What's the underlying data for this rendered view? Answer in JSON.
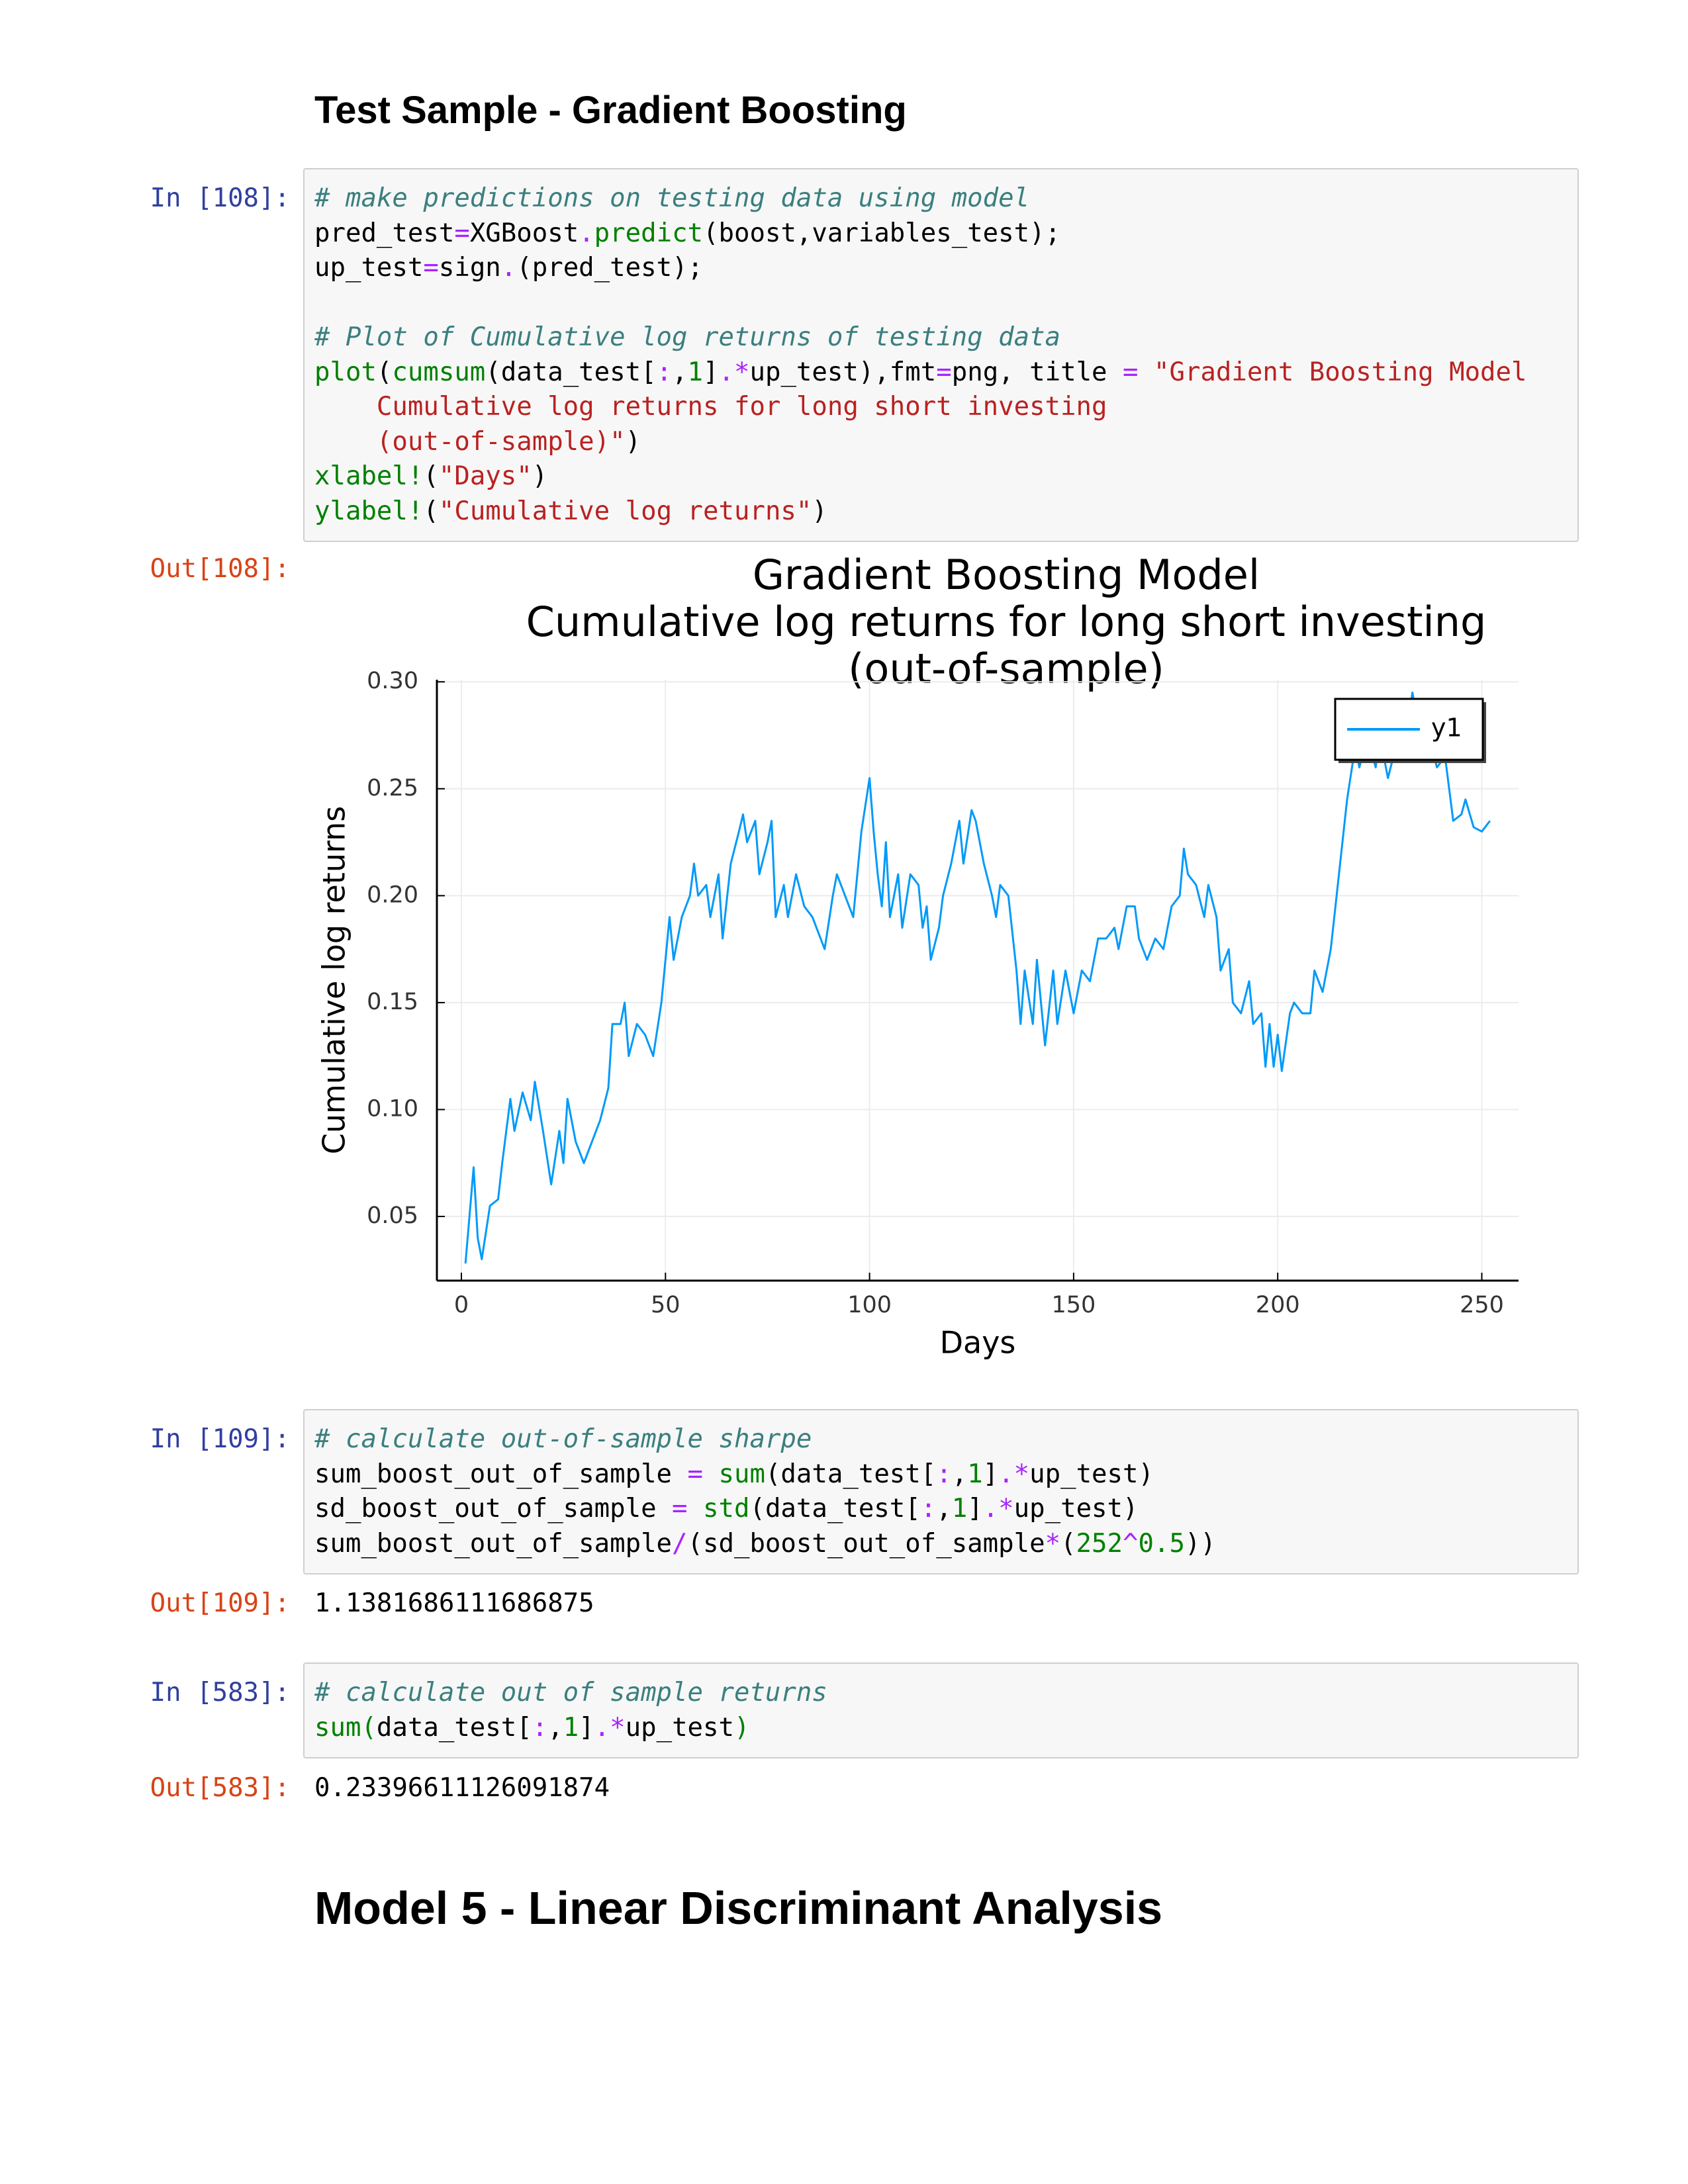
{
  "heading_1": "Test Sample - Gradient Boosting",
  "cells": [
    {
      "prompt": "In [108]:",
      "lines": [
        [
          {
            "text": "# make predictions on testing data using model",
            "color": "#3b7f7f",
            "italic": true
          }
        ],
        [
          {
            "text": "pred_test",
            "color": "#000000"
          },
          {
            "text": "=",
            "color": "#aa22ff"
          },
          {
            "text": "XGBoost",
            "color": "#000000"
          },
          {
            "text": ".",
            "color": "#aa22ff"
          },
          {
            "text": "predict",
            "color": "#008000"
          },
          {
            "text": "(boost,variables_test);",
            "color": "#000000"
          }
        ],
        [
          {
            "text": "up_test",
            "color": "#000000"
          },
          {
            "text": "=",
            "color": "#aa22ff"
          },
          {
            "text": "sign",
            "color": "#000000"
          },
          {
            "text": ".",
            "color": "#aa22ff"
          },
          {
            "text": "(pred_test);",
            "color": "#000000"
          }
        ],
        [],
        [
          {
            "text": "# Plot of Cumulative log returns of testing data",
            "color": "#3b7f7f",
            "italic": true
          }
        ],
        [
          {
            "text": "plot",
            "color": "#008000"
          },
          {
            "text": "(",
            "color": "#000000"
          },
          {
            "text": "cumsum",
            "color": "#008000"
          },
          {
            "text": "(data_test[",
            "color": "#000000"
          },
          {
            "text": ":",
            "color": "#aa22ff"
          },
          {
            "text": ",",
            "color": "#000000"
          },
          {
            "text": "1",
            "color": "#008000"
          },
          {
            "text": "]",
            "color": "#000000"
          },
          {
            "text": ".*",
            "color": "#aa22ff"
          },
          {
            "text": "up_test),fmt",
            "color": "#000000"
          },
          {
            "text": "=",
            "color": "#aa22ff"
          },
          {
            "text": "png, title ",
            "color": "#000000"
          },
          {
            "text": "=",
            "color": "#aa22ff"
          },
          {
            "text": " \"Gradient Boosting Model",
            "color": "#ba2121"
          }
        ],
        [
          {
            "text": "    Cumulative log returns for long short investing",
            "color": "#ba2121"
          }
        ],
        [
          {
            "text": "    (out-of-sample)\"",
            "color": "#ba2121"
          },
          {
            "text": ")",
            "color": "#000000"
          }
        ],
        [
          {
            "text": "xlabel!",
            "color": "#008000"
          },
          {
            "text": "(",
            "color": "#000000"
          },
          {
            "text": "\"Days\"",
            "color": "#ba2121"
          },
          {
            "text": ")",
            "color": "#000000"
          }
        ],
        [
          {
            "text": "ylabel!",
            "color": "#008000"
          },
          {
            "text": "(",
            "color": "#000000"
          },
          {
            "text": "\"Cumulative log returns\"",
            "color": "#ba2121"
          },
          {
            "text": ")",
            "color": "#000000"
          }
        ]
      ],
      "output_prompt": "Out[108]:"
    },
    {
      "prompt": "In [109]:",
      "lines": [
        [
          {
            "text": "# calculate out-of-sample sharpe",
            "color": "#3b7f7f",
            "italic": true
          }
        ],
        [
          {
            "text": "sum_boost_out_of_sample ",
            "color": "#000000"
          },
          {
            "text": "=",
            "color": "#aa22ff"
          },
          {
            "text": " ",
            "color": "#000000"
          },
          {
            "text": "sum",
            "color": "#008000"
          },
          {
            "text": "(data_test[",
            "color": "#000000"
          },
          {
            "text": ":",
            "color": "#aa22ff"
          },
          {
            "text": ",",
            "color": "#000000"
          },
          {
            "text": "1",
            "color": "#008000"
          },
          {
            "text": "]",
            "color": "#000000"
          },
          {
            "text": ".*",
            "color": "#aa22ff"
          },
          {
            "text": "up_test)",
            "color": "#000000"
          }
        ],
        [
          {
            "text": "sd_boost_out_of_sample ",
            "color": "#000000"
          },
          {
            "text": "=",
            "color": "#aa22ff"
          },
          {
            "text": " ",
            "color": "#000000"
          },
          {
            "text": "std",
            "color": "#008000"
          },
          {
            "text": "(data_test[",
            "color": "#000000"
          },
          {
            "text": ":",
            "color": "#aa22ff"
          },
          {
            "text": ",",
            "color": "#000000"
          },
          {
            "text": "1",
            "color": "#008000"
          },
          {
            "text": "]",
            "color": "#000000"
          },
          {
            "text": ".*",
            "color": "#aa22ff"
          },
          {
            "text": "up_test)",
            "color": "#000000"
          }
        ],
        [
          {
            "text": "sum_boost_out_of_sample",
            "color": "#000000"
          },
          {
            "text": "/",
            "color": "#aa22ff"
          },
          {
            "text": "(sd_boost_out_of_sample",
            "color": "#000000"
          },
          {
            "text": "*",
            "color": "#aa22ff"
          },
          {
            "text": "(",
            "color": "#000000"
          },
          {
            "text": "252",
            "color": "#008000"
          },
          {
            "text": "^",
            "color": "#aa22ff"
          },
          {
            "text": "0.5",
            "color": "#008000"
          },
          {
            "text": "))",
            "color": "#000000"
          }
        ]
      ],
      "output_prompt": "Out[109]:",
      "output": "1.1381686111686875"
    },
    {
      "prompt": "In [583]:",
      "lines": [
        [
          {
            "text": "# calculate out of sample returns",
            "color": "#3b7f7f",
            "italic": true
          }
        ],
        [
          {
            "text": "sum(",
            "color": "#008000"
          },
          {
            "text": "data_test[",
            "color": "#000000"
          },
          {
            "text": ":",
            "color": "#aa22ff"
          },
          {
            "text": ",",
            "color": "#000000"
          },
          {
            "text": "1",
            "color": "#008000"
          },
          {
            "text": "]",
            "color": "#000000"
          },
          {
            "text": ".*",
            "color": "#aa22ff"
          },
          {
            "text": "up_test",
            "color": "#000000"
          },
          {
            "text": ")",
            "color": "#008000"
          }
        ]
      ],
      "output_prompt": "Out[583]:",
      "output": "0.23396611126091874"
    }
  ],
  "heading_2": "Model 5 - Linear Discriminant Analysis",
  "chart_data": {
    "type": "line",
    "title": [
      "Gradient Boosting Model",
      "Cumulative log returns for long short investing",
      "(out-of-sample)"
    ],
    "xlabel": "Days",
    "ylabel": "Cumulative log returns",
    "x": [
      1,
      3,
      4,
      5,
      7,
      9,
      10,
      12,
      13,
      15,
      17,
      18,
      20,
      22,
      24,
      25,
      26,
      28,
      30,
      32,
      34,
      36,
      37,
      39,
      40,
      41,
      43,
      45,
      47,
      49,
      51,
      52,
      54,
      56,
      57,
      58,
      60,
      61,
      63,
      64,
      66,
      68,
      69,
      70,
      72,
      73,
      75,
      76,
      77,
      79,
      80,
      82,
      84,
      86,
      88,
      89,
      91,
      92,
      94,
      96,
      98,
      100,
      101,
      102,
      103,
      104,
      105,
      107,
      108,
      110,
      112,
      113,
      114,
      115,
      117,
      118,
      120,
      122,
      123,
      125,
      126,
      128,
      130,
      131,
      132,
      134,
      136,
      137,
      138,
      140,
      141,
      143,
      145,
      146,
      148,
      150,
      152,
      154,
      156,
      158,
      160,
      161,
      163,
      165,
      166,
      168,
      170,
      172,
      174,
      176,
      177,
      178,
      180,
      182,
      183,
      185,
      186,
      188,
      189,
      191,
      193,
      194,
      196,
      197,
      198,
      199,
      200,
      201,
      203,
      204,
      206,
      208,
      209,
      211,
      213,
      215,
      217,
      219,
      220,
      222,
      224,
      225,
      227,
      229,
      231,
      233,
      234,
      235,
      237,
      239,
      241,
      242,
      243,
      245,
      246,
      248,
      250,
      252
    ],
    "series": [
      {
        "name": "y1",
        "color": "#009af9",
        "values": [
          0.028,
          0.073,
          0.04,
          0.03,
          0.055,
          0.058,
          0.075,
          0.105,
          0.09,
          0.108,
          0.095,
          0.113,
          0.09,
          0.065,
          0.09,
          0.075,
          0.105,
          0.085,
          0.075,
          0.085,
          0.095,
          0.11,
          0.14,
          0.14,
          0.15,
          0.125,
          0.14,
          0.135,
          0.125,
          0.15,
          0.19,
          0.17,
          0.19,
          0.2,
          0.215,
          0.2,
          0.205,
          0.19,
          0.21,
          0.18,
          0.215,
          0.23,
          0.238,
          0.225,
          0.235,
          0.21,
          0.225,
          0.235,
          0.19,
          0.205,
          0.19,
          0.21,
          0.195,
          0.19,
          0.18,
          0.175,
          0.2,
          0.21,
          0.2,
          0.19,
          0.23,
          0.255,
          0.23,
          0.21,
          0.195,
          0.225,
          0.19,
          0.21,
          0.185,
          0.21,
          0.205,
          0.185,
          0.195,
          0.17,
          0.185,
          0.2,
          0.215,
          0.235,
          0.215,
          0.24,
          0.235,
          0.215,
          0.2,
          0.19,
          0.205,
          0.2,
          0.165,
          0.14,
          0.165,
          0.14,
          0.17,
          0.13,
          0.165,
          0.14,
          0.165,
          0.145,
          0.165,
          0.16,
          0.18,
          0.18,
          0.185,
          0.175,
          0.195,
          0.195,
          0.18,
          0.17,
          0.18,
          0.175,
          0.195,
          0.2,
          0.222,
          0.21,
          0.205,
          0.19,
          0.205,
          0.19,
          0.165,
          0.175,
          0.15,
          0.145,
          0.16,
          0.14,
          0.145,
          0.12,
          0.14,
          0.12,
          0.135,
          0.118,
          0.145,
          0.15,
          0.145,
          0.145,
          0.165,
          0.155,
          0.175,
          0.21,
          0.245,
          0.27,
          0.26,
          0.275,
          0.26,
          0.275,
          0.255,
          0.27,
          0.27,
          0.295,
          0.285,
          0.265,
          0.275,
          0.26,
          0.265,
          0.25,
          0.235,
          0.238,
          0.245,
          0.232,
          0.23,
          0.235
        ]
      }
    ],
    "xlim": [
      -6,
      259
    ],
    "ylim": [
      0.02,
      0.301
    ],
    "xticks": [
      0,
      50,
      100,
      150,
      200,
      250
    ],
    "yticks": [
      0.05,
      {
        "value": 0.1,
        "label": "0.10"
      },
      0.15,
      {
        "value": 0.2,
        "label": "0.20"
      },
      0.25,
      {
        "value": 0.3,
        "label": "0.30"
      }
    ],
    "grid": true,
    "legend": "top-right"
  }
}
